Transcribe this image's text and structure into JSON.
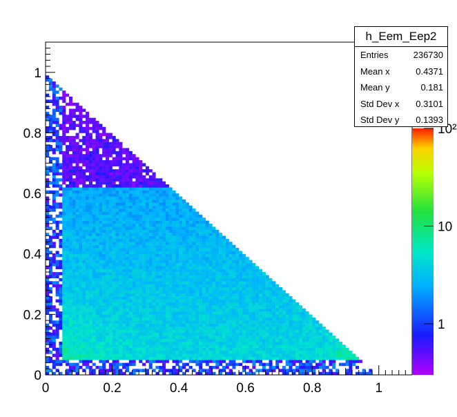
{
  "chart_data": {
    "type": "heatmap",
    "title": "h_Eem_Eep2",
    "xlabel": "",
    "ylabel": "",
    "xlim": [
      0,
      1.1
    ],
    "ylim": [
      0,
      1.1
    ],
    "x_ticks": [
      "0",
      "0.2",
      "0.4",
      "0.6",
      "0.8",
      "1"
    ],
    "y_ticks": [
      "0",
      "0.2",
      "0.4",
      "0.6",
      "0.8",
      "1"
    ],
    "z_scale": "log",
    "z_range": [
      0.3,
      100
    ],
    "z_ticks": [
      "1",
      "10",
      "10²"
    ],
    "region": "x + y ≤ 1, mostly populated for x ≥ 0.05 and y ≥ 0.05",
    "peak_regions": [
      {
        "x": 0.07,
        "y": 0.07,
        "level": "high"
      },
      {
        "x": 0.9,
        "y": 0.07,
        "level": "high"
      }
    ],
    "stats": {
      "title": "h_Eem_Eep2",
      "rows": [
        {
          "label": "Entries",
          "value": "236730"
        },
        {
          "label": "Mean x",
          "value": "0.4371"
        },
        {
          "label": "Mean y",
          "value": "0.181"
        },
        {
          "label": "Std Dev x",
          "value": "0.3101"
        },
        {
          "label": "Std Dev y",
          "value": "0.1393"
        }
      ]
    }
  }
}
